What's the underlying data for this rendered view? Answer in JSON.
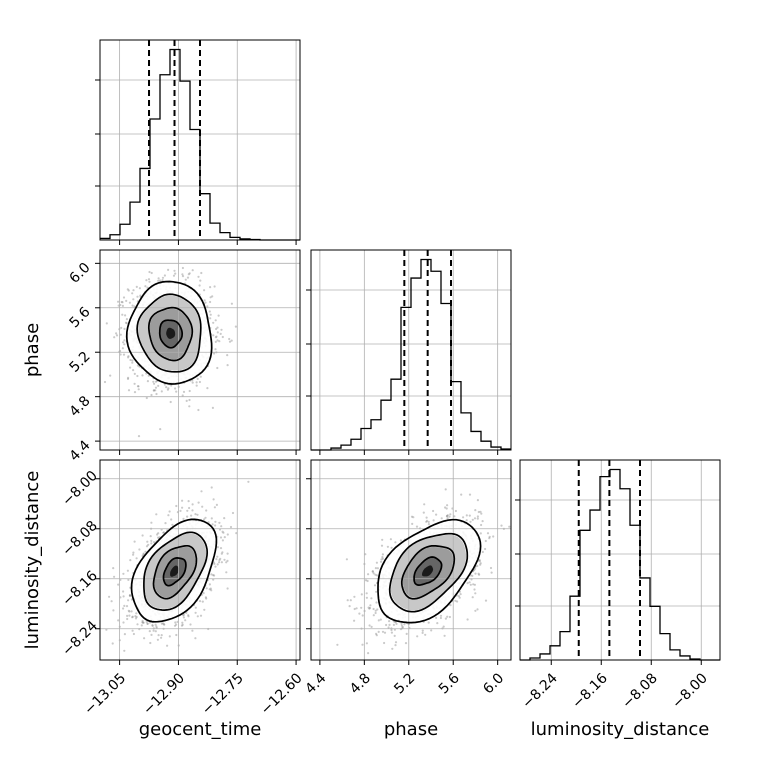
{
  "chart_data": {
    "type": "corner",
    "parameters": [
      "geocent_time",
      "phase",
      "luminosity_distance"
    ],
    "axis_labels": {
      "x": [
        "geocent_time",
        "phase",
        "luminosity_distance"
      ],
      "y": [
        "",
        "phase",
        "luminosity_distance"
      ]
    },
    "ranges": {
      "geocent_time": [
        -13.1,
        -12.59
      ],
      "phase": [
        4.32,
        6.12
      ],
      "luminosity_distance": [
        -8.29,
        -7.97
      ]
    },
    "ticks": {
      "geocent_time": [
        -13.05,
        -12.9,
        -12.75,
        -12.6
      ],
      "phase": [
        4.4,
        4.8,
        5.2,
        5.6,
        6.0
      ],
      "luminosity_distance": [
        -8.24,
        -8.16,
        -8.08,
        -8.0
      ]
    },
    "tick_labels": {
      "geocent_time": [
        "−13.05",
        "−12.90",
        "−12.75",
        "−12.60"
      ],
      "phase": [
        "4.4",
        "4.8",
        "5.2",
        "5.6",
        "6.0"
      ],
      "luminosity_distance": [
        "−8.24",
        "−8.16",
        "−8.08",
        "−8.00"
      ]
    },
    "quantiles": {
      "geocent_time": [
        -12.975,
        -12.91,
        -12.845
      ],
      "phase": [
        5.16,
        5.37,
        5.58
      ],
      "luminosity_distance": [
        -8.196,
        -8.147,
        -8.098
      ]
    },
    "histograms": {
      "geocent_time": {
        "bin_edges": [
          -13.1,
          -13.0745,
          -13.049,
          -13.0235,
          -12.998,
          -12.9725,
          -12.947,
          -12.9215,
          -12.896,
          -12.8705,
          -12.845,
          -12.8195,
          -12.794,
          -12.7685,
          -12.743,
          -12.7175,
          -12.692,
          -12.6665,
          -12.641,
          -12.6155,
          -12.59
        ],
        "counts": [
          3,
          10,
          30,
          72,
          136,
          230,
          314,
          362,
          302,
          210,
          88,
          32,
          14,
          5,
          2,
          1,
          0,
          0,
          0,
          0
        ]
      },
      "phase": {
        "bin_edges": [
          4.32,
          4.41,
          4.5,
          4.59,
          4.68,
          4.77,
          4.86,
          4.95,
          5.04,
          5.13,
          5.22,
          5.31,
          5.4,
          5.49,
          5.58,
          5.67,
          5.76,
          5.85,
          5.94,
          6.03,
          6.12
        ],
        "counts": [
          0,
          0,
          4,
          10,
          22,
          44,
          62,
          102,
          145,
          292,
          352,
          390,
          366,
          300,
          140,
          76,
          38,
          18,
          6,
          2
        ]
      },
      "luminosity_distance": {
        "bin_edges": [
          -8.29,
          -8.274,
          -8.258,
          -8.242,
          -8.226,
          -8.21,
          -8.194,
          -8.178,
          -8.162,
          -8.146,
          -8.13,
          -8.114,
          -8.098,
          -8.082,
          -8.066,
          -8.05,
          -8.034,
          -8.018,
          -8.002,
          -7.986,
          -7.97
        ],
        "counts": [
          0,
          4,
          12,
          28,
          56,
          126,
          256,
          296,
          362,
          376,
          338,
          266,
          162,
          106,
          52,
          20,
          8,
          2,
          0,
          0
        ]
      }
    },
    "pairs": [
      {
        "x": "geocent_time",
        "y": "phase",
        "mean": [
          -12.92,
          5.37
        ],
        "sd": [
          0.052,
          0.225
        ],
        "correlation": -0.05
      },
      {
        "x": "geocent_time",
        "y": "luminosity_distance",
        "mean": [
          -12.91,
          -8.148
        ],
        "sd": [
          0.052,
          0.04
        ],
        "correlation": 0.45
      },
      {
        "x": "phase",
        "y": "luminosity_distance",
        "mean": [
          5.37,
          -8.148
        ],
        "sd": [
          0.225,
          0.04
        ],
        "correlation": 0.45
      }
    ],
    "grid": true,
    "legend": "none"
  }
}
